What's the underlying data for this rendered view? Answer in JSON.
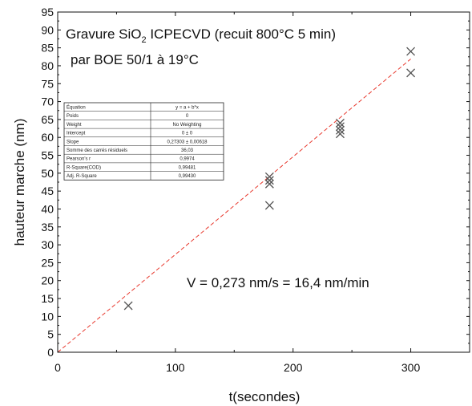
{
  "chart_data": {
    "type": "scatter",
    "title_line1_prefix": "Gravure SiO",
    "title_line1_sub": "2",
    "title_line1_suffix": " ICPECVD (recuit 800°C 5 min)",
    "title_line2": "par BOE 50/1 à 19°C",
    "xlabel": "t(secondes)",
    "ylabel": "hauteur marche (nm)",
    "xlim": [
      0,
      350
    ],
    "ylim": [
      0,
      95
    ],
    "x_ticks": [
      0,
      100,
      200,
      300
    ],
    "y_ticks": [
      0,
      5,
      10,
      15,
      20,
      25,
      30,
      35,
      40,
      45,
      50,
      55,
      60,
      65,
      70,
      75,
      80,
      85,
      90,
      95
    ],
    "series": [
      {
        "marker": "x",
        "color": "#555555",
        "x": [
          60,
          180,
          180,
          180,
          180,
          240,
          240,
          240,
          240,
          300,
          300
        ],
        "y": [
          13,
          41,
          47,
          48,
          49,
          61,
          62,
          63,
          64,
          78,
          84
        ]
      }
    ],
    "fit": {
      "style": "dashed",
      "color": "#e8392e",
      "slope": 0.273,
      "intercept": 0,
      "x_range": [
        0,
        300
      ]
    },
    "annotation": "V = 0,273 nm/s = 16,4 nm/min",
    "fit_table": [
      [
        "Équation",
        "y = a + b*x"
      ],
      [
        "Poids",
        "0"
      ],
      [
        "Weight",
        "No Weighting"
      ],
      [
        "Intercept",
        "0 ± 0"
      ],
      [
        "Slope",
        "0,27303 ± 0,00618"
      ],
      [
        "Somme des carrés résiduels",
        "36,03"
      ],
      [
        "Pearson's r",
        "0,9974"
      ],
      [
        "R-Square(COD)",
        "0,99481"
      ],
      [
        "Adj. R-Square",
        "0,99430"
      ]
    ],
    "grid": false,
    "legend": "none"
  }
}
